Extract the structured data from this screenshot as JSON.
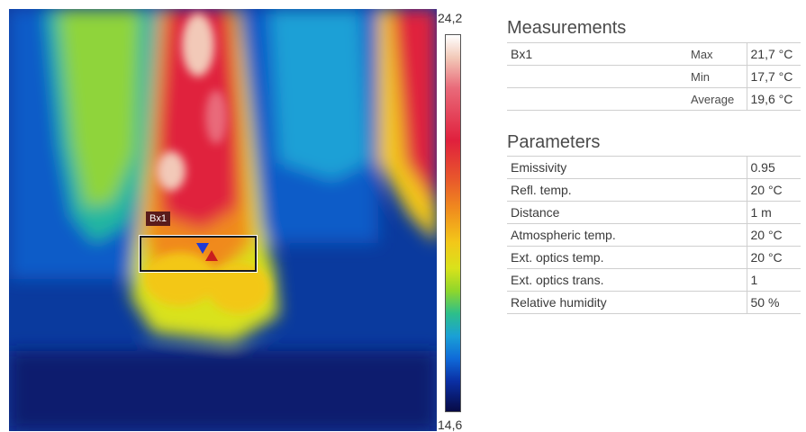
{
  "image": {
    "roi_label": "Bx1",
    "scale_max": "24,2",
    "scale_min": "14,6"
  },
  "measurements": {
    "title": "Measurements",
    "rows": [
      {
        "name": "Bx1",
        "stat": "Max",
        "value": "21,7 °C"
      },
      {
        "name": "",
        "stat": "Min",
        "value": "17,7 °C"
      },
      {
        "name": "",
        "stat": "Average",
        "value": "19,6 °C"
      }
    ]
  },
  "parameters": {
    "title": "Parameters",
    "rows": [
      {
        "label": "Emissivity",
        "value": "0.95"
      },
      {
        "label": "Refl. temp.",
        "value": "20  °C"
      },
      {
        "label": "Distance",
        "value": "1  m"
      },
      {
        "label": "Atmospheric temp.",
        "value": "20  °C"
      },
      {
        "label": "Ext. optics temp.",
        "value": "20  °C"
      },
      {
        "label": "Ext. optics trans.",
        "value": "1"
      },
      {
        "label": "Relative humidity",
        "value": "50  %"
      }
    ]
  }
}
